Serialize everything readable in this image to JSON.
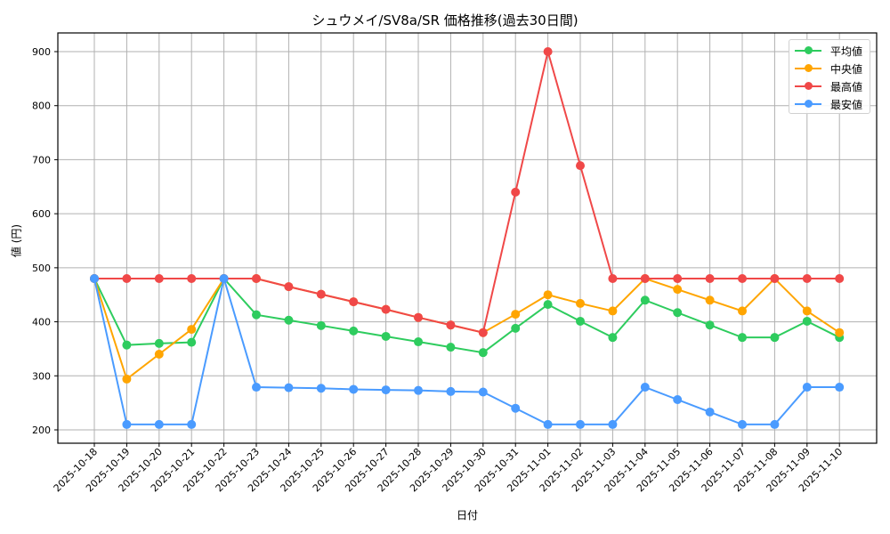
{
  "chart_data": {
    "type": "line",
    "title": "シュウメイ/SV8a/SR 価格推移(過去30日間)",
    "xlabel": "日付",
    "ylabel": "値 (円)",
    "ylim": [
      175,
      935
    ],
    "yticks": [
      200,
      300,
      400,
      500,
      600,
      700,
      800,
      900
    ],
    "grid": true,
    "legend_position": "upper right",
    "x": [
      "2025-10-18",
      "2025-10-19",
      "2025-10-20",
      "2025-10-21",
      "2025-10-22",
      "2025-10-23",
      "2025-10-24",
      "2025-10-25",
      "2025-10-26",
      "2025-10-27",
      "2025-10-28",
      "2025-10-29",
      "2025-10-30",
      "2025-10-31",
      "2025-11-01",
      "2025-11-02",
      "2025-11-03",
      "2025-11-04",
      "2025-11-05",
      "2025-11-06",
      "2025-11-07",
      "2025-11-08",
      "2025-11-09",
      "2025-11-10"
    ],
    "series": [
      {
        "name": "平均値",
        "color": "#2ecc5e",
        "values": [
          480,
          357,
          360,
          362,
          480,
          413,
          403,
          393,
          383,
          373,
          363,
          353,
          343,
          388,
          432,
          401,
          371,
          440,
          417,
          394,
          371,
          371,
          401,
          371
        ]
      },
      {
        "name": "中央値",
        "color": "#ffa500",
        "values": [
          480,
          294,
          340,
          386,
          480,
          480,
          465,
          451,
          437,
          423,
          408,
          394,
          380,
          414,
          450,
          434,
          420,
          480,
          460,
          440,
          420,
          480,
          420,
          380
        ]
      },
      {
        "name": "最高値",
        "color": "#f04848",
        "values": [
          480,
          480,
          480,
          480,
          480,
          480,
          465,
          451,
          437,
          423,
          408,
          394,
          380,
          640,
          900,
          689,
          480,
          480,
          480,
          480,
          480,
          480,
          480,
          480
        ]
      },
      {
        "name": "最安値",
        "color": "#4a9bff",
        "values": [
          480,
          210,
          210,
          210,
          480,
          279,
          278,
          277,
          275,
          274,
          273,
          271,
          270,
          240,
          210,
          210,
          210,
          279,
          256,
          233,
          210,
          210,
          279,
          279
        ]
      }
    ]
  }
}
